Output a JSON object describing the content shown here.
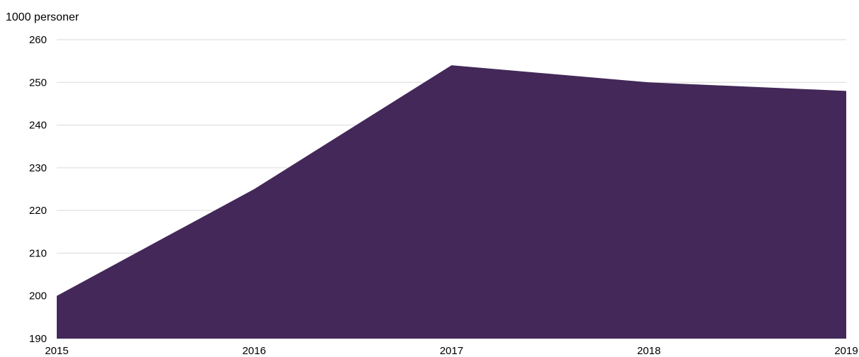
{
  "chart_data": {
    "type": "area",
    "ylabel": "1000 personer",
    "x": [
      "2015",
      "2016",
      "2017",
      "2018",
      "2019"
    ],
    "series": [
      {
        "values": [
          200,
          225,
          254,
          250,
          248
        ]
      }
    ],
    "ylim": [
      190,
      260
    ],
    "yticks": [
      190,
      200,
      210,
      220,
      230,
      240,
      250,
      260
    ],
    "grid": true,
    "colors": {
      "area": "#432859",
      "grid": "#d9d9d9",
      "axis": "#d0d0d0",
      "text": "#000000"
    }
  }
}
